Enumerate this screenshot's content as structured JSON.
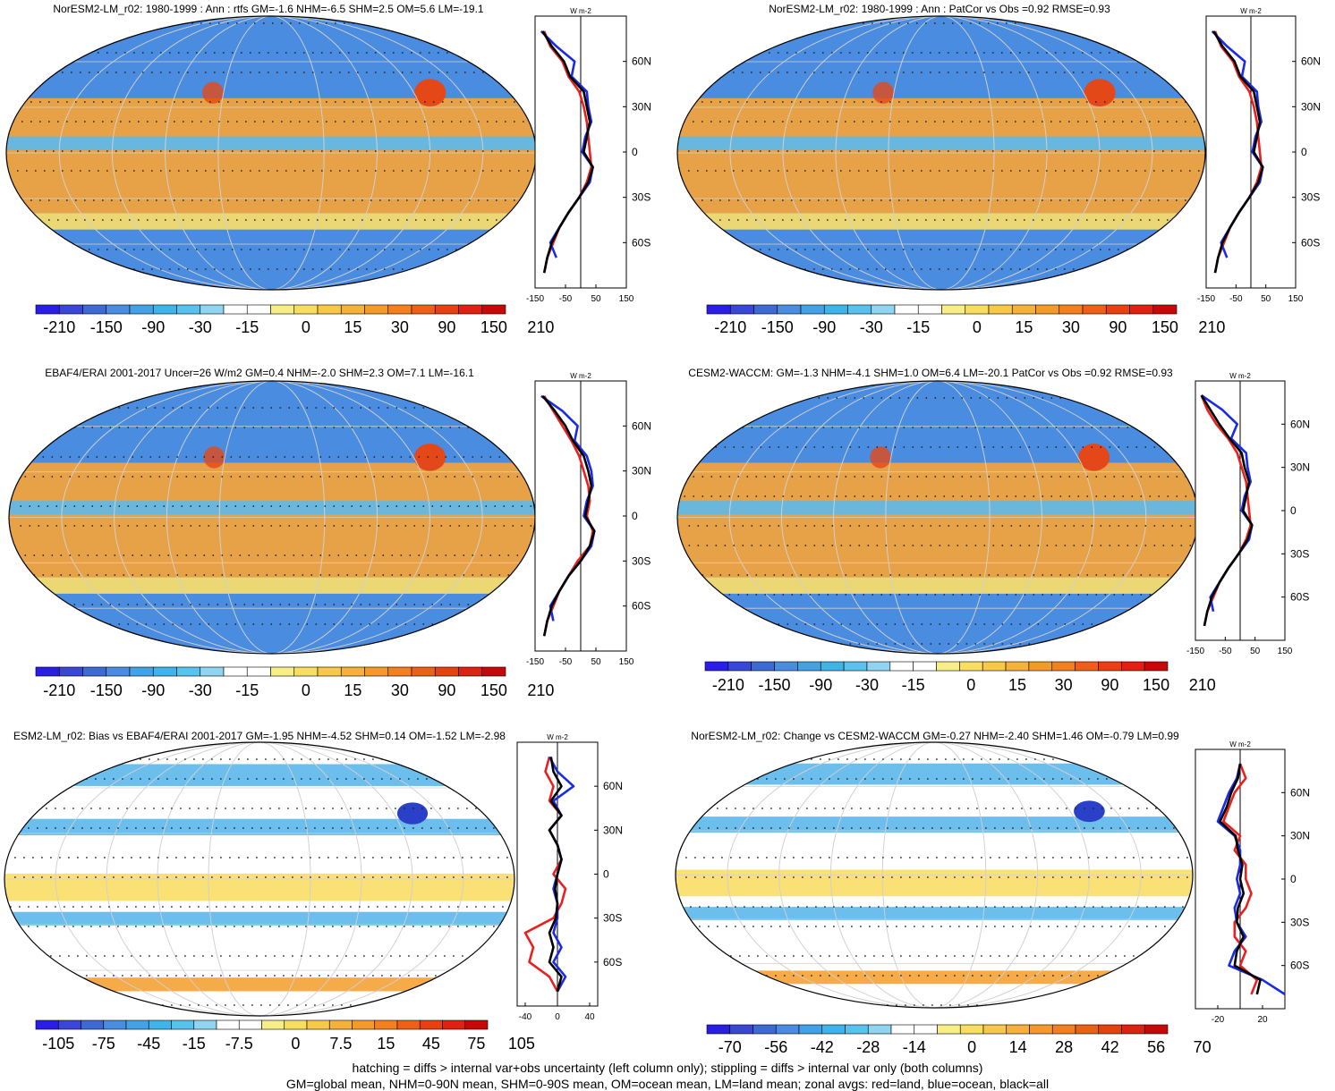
{
  "panels": [
    {
      "title": "NorESM2-LM_r02: 1980-1999 : Ann : rtfs GM=-1.6 NHM=-6.5 SHM=2.5 OM=5.6 LM=-19.1",
      "colorbar_labels": [
        "-210",
        "-150",
        "-90",
        "-30",
        "-15",
        "0",
        "15",
        "30",
        "90",
        "150",
        "210"
      ],
      "profile_unit": "W m-2",
      "profile_xticks": [
        "-150",
        "-50",
        "50",
        "150"
      ],
      "profile_yticks": [
        "60N",
        "30N",
        "0",
        "30S",
        "60S"
      ]
    },
    {
      "title": "NorESM2-LM_r02: 1980-1999 : Ann : PatCor vs Obs =0.92 RMSE=0.93",
      "colorbar_labels": [
        "-210",
        "-150",
        "-90",
        "-30",
        "-15",
        "0",
        "15",
        "30",
        "90",
        "150",
        "210"
      ],
      "profile_unit": "W m-2",
      "profile_xticks": [
        "-150",
        "-50",
        "50",
        "150"
      ],
      "profile_yticks": [
        "60N",
        "30N",
        "0",
        "30S",
        "60S"
      ]
    },
    {
      "title": "EBAF4/ERAI 2001-2017 Uncer=26 W/m2 GM=0.4 NHM=-2.0 SHM=2.3 OM=7.1 LM=-16.1",
      "colorbar_labels": [
        "-210",
        "-150",
        "-90",
        "-30",
        "-15",
        "0",
        "15",
        "30",
        "90",
        "150",
        "210"
      ],
      "profile_unit": "W m-2",
      "profile_xticks": [
        "-150",
        "-50",
        "50",
        "150"
      ],
      "profile_yticks": [
        "60N",
        "30N",
        "0",
        "30S",
        "60S"
      ]
    },
    {
      "title": "CESM2-WACCM: GM=-1.3 NHM=-4.1 SHM=1.0 OM=6.4 LM=-20.1 PatCor vs Obs =0.92 RMSE=0.93",
      "colorbar_labels": [
        "-210",
        "-150",
        "-90",
        "-30",
        "-15",
        "0",
        "15",
        "30",
        "90",
        "150",
        "210"
      ],
      "profile_unit": "W m-2",
      "profile_xticks": [
        "-150",
        "-50",
        "50",
        "150"
      ],
      "profile_yticks": [
        "60N",
        "30N",
        "0",
        "30S",
        "60S"
      ]
    },
    {
      "title": "ESM2-LM_r02: Bias vs EBAF4/ERAI 2001-2017 GM=-1.95 NHM=-4.52 SHM=0.14 OM=-1.52 LM=-2.98",
      "colorbar_labels": [
        "-105",
        "-75",
        "-45",
        "-15",
        "-7.5",
        "0",
        "7.5",
        "15",
        "45",
        "75",
        "105"
      ],
      "profile_unit": "W m-2",
      "profile_xticks": [
        "-40",
        "0",
        "40"
      ],
      "profile_yticks": [
        "60N",
        "30N",
        "0",
        "30S",
        "60S"
      ]
    },
    {
      "title": "NorESM2-LM_r02: Change vs CESM2-WACCM GM=-0.27 NHM=-2.40 SHM=1.46 OM=-0.79 LM=0.99",
      "colorbar_labels": [
        "-70",
        "-56",
        "-42",
        "-28",
        "-14",
        "0",
        "14",
        "28",
        "42",
        "56",
        "70"
      ],
      "profile_unit": "W m-2",
      "profile_xticks": [
        "-20",
        "20"
      ],
      "profile_yticks": [
        "60N",
        "30N",
        "0",
        "30S",
        "60S"
      ]
    }
  ],
  "colorbar_colors": [
    "#2a1ee6",
    "#3a46d6",
    "#3d6ad2",
    "#4a8ce0",
    "#43a2e6",
    "#3fb4ea",
    "#58c2ee",
    "#8fd4f0",
    "#ffffff",
    "#ffffff",
    "#f8ee88",
    "#f8de60",
    "#f8c84a",
    "#f6b03c",
    "#f49a2a",
    "#f28020",
    "#ee6018",
    "#e84010",
    "#e02010",
    "#c80808"
  ],
  "map_colors": {
    "blue": "#4a8ce0",
    "cyan": "#5fb8ec",
    "white": "#ffffff",
    "yellow": "#f8de6a",
    "orange": "#f4a43a",
    "red": "#e44818",
    "darkblue": "#2a40c8"
  },
  "line_colors": {
    "land": "#e82020",
    "ocean": "#1a2ae6",
    "all": "#000000"
  },
  "footnotes": [
    "hatching = diffs > internal var+obs uncertainty (left column only); stippling = diffs > internal var only (both columns)",
    "GM=global mean, NHM=0-90N mean, SHM=0-90S mean, OM=ocean mean, LM=land mean; zonal avgs: red=land, blue=ocean, black=all"
  ],
  "chart_data": [
    {
      "type": "heatmap",
      "title": "NorESM2-LM_r02: 1980-1999 : Ann : rtfs GM=-1.6 NHM=-6.5 SHM=2.5 OM=5.6 LM=-19.1",
      "colorbar": [
        -210,
        -150,
        -90,
        -30,
        -15,
        0,
        15,
        30,
        90,
        150,
        210
      ],
      "zonal_profile": {
        "ylim": [
          -90,
          90
        ],
        "xlim": [
          -150,
          150
        ],
        "lat": [
          80,
          70,
          60,
          50,
          40,
          30,
          20,
          10,
          0,
          -10,
          -20,
          -30,
          -40,
          -50,
          -60,
          -70,
          -80
        ],
        "land": [
          -120,
          -100,
          -60,
          -40,
          -5,
          10,
          20,
          25,
          30,
          35,
          20,
          -5,
          -40,
          -70,
          -90,
          -110,
          -120
        ],
        "ocean": [
          -130,
          -80,
          -20,
          -30,
          20,
          25,
          35,
          15,
          5,
          40,
          30,
          -5,
          -40,
          -70,
          -100,
          -80,
          null
        ],
        "all": [
          -125,
          -95,
          -55,
          -35,
          10,
          20,
          30,
          20,
          10,
          40,
          25,
          -5,
          -40,
          -70,
          -95,
          -110,
          -120
        ]
      }
    },
    {
      "type": "heatmap",
      "title": "NorESM2-LM_r02: 1980-1999 : Ann : PatCor vs Obs =0.92 RMSE=0.93",
      "colorbar": [
        -210,
        -150,
        -90,
        -30,
        -15,
        0,
        15,
        30,
        90,
        150,
        210
      ],
      "zonal_profile": {
        "ylim": [
          -90,
          90
        ],
        "xlim": [
          -150,
          150
        ],
        "lat": [
          80,
          70,
          60,
          50,
          40,
          30,
          20,
          10,
          0,
          -10,
          -20,
          -30,
          -40,
          -50,
          -60,
          -70,
          -80
        ],
        "land": [
          -120,
          -100,
          -60,
          -40,
          -5,
          10,
          20,
          25,
          30,
          35,
          20,
          -5,
          -40,
          -70,
          -90,
          -110,
          -120
        ],
        "ocean": [
          -130,
          -80,
          -20,
          -30,
          20,
          25,
          35,
          15,
          5,
          40,
          30,
          -5,
          -40,
          -70,
          -100,
          -80,
          null
        ],
        "all": [
          -125,
          -95,
          -55,
          -35,
          10,
          20,
          30,
          20,
          10,
          40,
          25,
          -5,
          -40,
          -70,
          -95,
          -110,
          -120
        ]
      }
    },
    {
      "type": "heatmap",
      "title": "EBAF4/ERAI 2001-2017 Uncer=26 W/m2 GM=0.4 NHM=-2.0 SHM=2.3 OM=7.1 LM=-16.1",
      "colorbar": [
        -210,
        -150,
        -90,
        -30,
        -15,
        0,
        15,
        30,
        90,
        150,
        210
      ],
      "zonal_profile": {
        "ylim": [
          -90,
          90
        ],
        "xlim": [
          -150,
          150
        ],
        "lat": [
          80,
          70,
          60,
          50,
          40,
          30,
          20,
          10,
          0,
          -10,
          -20,
          -30,
          -40,
          -50,
          -60,
          -70,
          -80
        ],
        "land": [
          -120,
          -90,
          -60,
          -30,
          -5,
          10,
          25,
          30,
          20,
          40,
          30,
          -10,
          -40,
          -70,
          -90,
          -110,
          -120
        ],
        "ocean": [
          -130,
          -60,
          -10,
          -20,
          20,
          35,
          40,
          20,
          10,
          45,
          35,
          0,
          -40,
          -70,
          -100,
          -90,
          null
        ],
        "all": [
          -125,
          -85,
          -50,
          -25,
          10,
          25,
          35,
          25,
          15,
          45,
          30,
          0,
          -40,
          -70,
          -95,
          -110,
          -120
        ]
      }
    },
    {
      "type": "heatmap",
      "title": "CESM2-WACCM: GM=-1.3 NHM=-4.1 SHM=1.0 OM=6.4 LM=-20.1 PatCor vs Obs =0.92 RMSE=0.93",
      "colorbar": [
        -210,
        -150,
        -90,
        -30,
        -15,
        0,
        15,
        30,
        90,
        150,
        210
      ],
      "zonal_profile": {
        "ylim": [
          -90,
          90
        ],
        "xlim": [
          -150,
          150
        ],
        "lat": [
          80,
          70,
          60,
          50,
          40,
          30,
          20,
          10,
          0,
          -10,
          -20,
          -30,
          -40,
          -50,
          -60,
          -70,
          -80
        ],
        "land": [
          -130,
          -110,
          -80,
          -40,
          -10,
          5,
          20,
          25,
          30,
          35,
          20,
          -5,
          -40,
          -70,
          -90,
          -110,
          -120
        ],
        "ocean": [
          -130,
          -60,
          -10,
          -30,
          20,
          25,
          35,
          15,
          5,
          40,
          30,
          -5,
          -40,
          -70,
          -100,
          -90,
          null
        ],
        "all": [
          -130,
          -100,
          -70,
          -35,
          5,
          15,
          30,
          20,
          10,
          40,
          25,
          -5,
          -40,
          -70,
          -95,
          -110,
          -120
        ]
      }
    },
    {
      "type": "heatmap",
      "title": "ESM2-LM_r02: Bias vs EBAF4/ERAI 2001-2017 GM=-1.95 NHM=-4.52 SHM=0.14 OM=-1.52 LM=-2.98",
      "colorbar": [
        -105,
        -75,
        -45,
        -15,
        -7.5,
        0,
        7.5,
        15,
        45,
        75,
        105
      ],
      "zonal_profile": {
        "ylim": [
          -90,
          90
        ],
        "xlim": [
          -50,
          50
        ],
        "lat": [
          80,
          70,
          60,
          50,
          40,
          30,
          20,
          10,
          0,
          -10,
          -20,
          -30,
          -40,
          -50,
          -60,
          -70,
          -80
        ],
        "land": [
          -10,
          -15,
          -5,
          -10,
          5,
          -10,
          0,
          5,
          -5,
          10,
          5,
          -5,
          -40,
          -30,
          -35,
          -10,
          0
        ],
        "ocean": [
          -10,
          0,
          20,
          -5,
          5,
          -10,
          0,
          5,
          0,
          -5,
          0,
          0,
          -5,
          5,
          -5,
          10,
          0
        ],
        "all": [
          -8,
          -5,
          5,
          -8,
          5,
          -10,
          0,
          5,
          0,
          -3,
          0,
          -2,
          -10,
          -5,
          -10,
          5,
          0
        ]
      }
    },
    {
      "type": "heatmap",
      "title": "NorESM2-LM_r02: Change vs CESM2-WACCM GM=-0.27 NHM=-2.40 SHM=1.46 OM=-0.79 LM=0.99",
      "colorbar": [
        -70,
        -56,
        -42,
        -28,
        -14,
        0,
        14,
        28,
        42,
        56,
        70
      ],
      "zonal_profile": {
        "ylim": [
          -90,
          90
        ],
        "xlim": [
          -40,
          40
        ],
        "lat": [
          80,
          70,
          60,
          50,
          40,
          30,
          20,
          10,
          0,
          -10,
          -20,
          -30,
          -40,
          -50,
          -60,
          -70,
          -80
        ],
        "land": [
          0,
          5,
          -5,
          -10,
          -15,
          0,
          -5,
          5,
          5,
          10,
          5,
          -5,
          -5,
          5,
          0,
          15,
          10
        ],
        "ocean": [
          0,
          -3,
          -10,
          -15,
          -20,
          -5,
          0,
          0,
          -3,
          0,
          -5,
          -3,
          5,
          -5,
          -10,
          20,
          40
        ],
        "all": [
          0,
          -2,
          -8,
          -12,
          -18,
          -4,
          -2,
          2,
          0,
          3,
          -2,
          -3,
          3,
          -3,
          -5,
          18,
          15
        ]
      }
    }
  ]
}
